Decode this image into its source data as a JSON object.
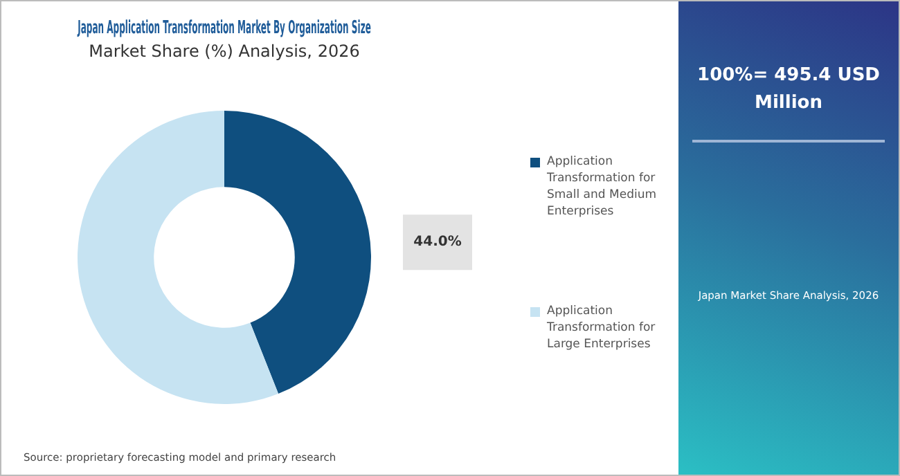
{
  "chart_data": {
    "type": "donut",
    "title": "Japan Application Transformation Market By Organization Size",
    "subtitle": "Market Share (%) Analysis, 2026",
    "categories": [
      "Application Transformation for Small and Medium Enterprises",
      "Application Transformation for Large Enterprises"
    ],
    "values": [
      44.0,
      56.0
    ],
    "colors": [
      "#0f4f7f",
      "#c6e3f2"
    ],
    "value_labels": [
      "44.0%",
      null
    ],
    "legend": "right",
    "annotations": [
      "100%= 495.4 USD Million",
      "Japan Market Share Analysis, 2026",
      "Source: proprietary forecasting model and primary research"
    ]
  }
}
